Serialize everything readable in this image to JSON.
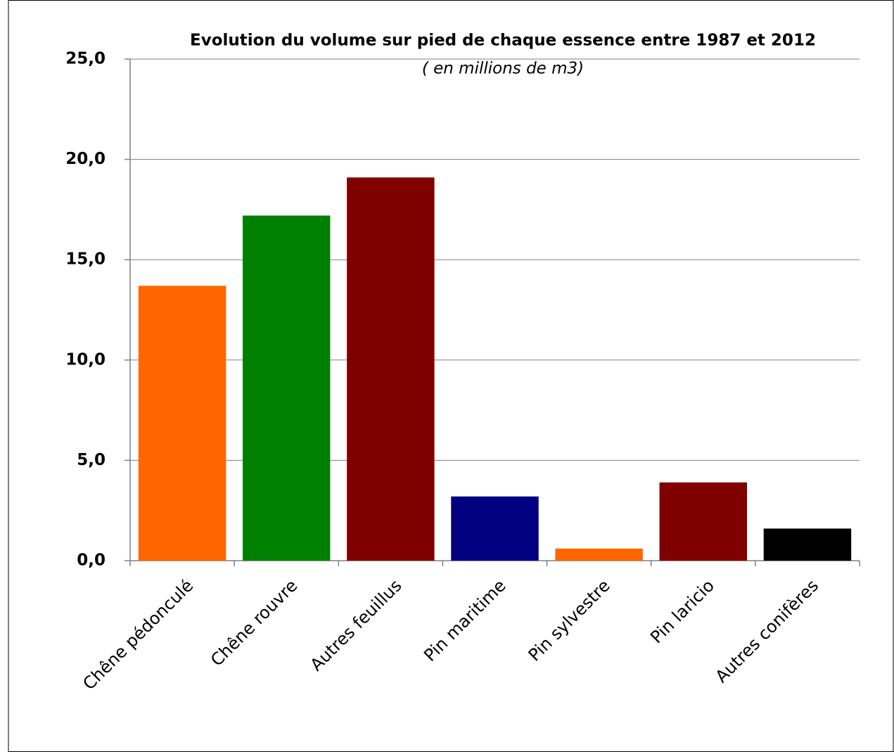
{
  "chart_data": {
    "type": "bar",
    "title": "Evolution du volume sur pied de chaque essence entre 1987 et 2012",
    "subtitle": "( en millions de m3)",
    "categories": [
      "Chêne pédonculé",
      "Chêne rouvre",
      "Autres feuillus",
      "Pin maritime",
      "Pin sylvestre",
      "Pin laricio",
      "Autres conifères"
    ],
    "values": [
      13.7,
      17.2,
      19.1,
      3.2,
      0.6,
      3.9,
      1.6
    ],
    "colors": [
      "#ff6600",
      "#008000",
      "#800000",
      "#000080",
      "#ff6600",
      "#800000",
      "#000000"
    ],
    "ylim": [
      0,
      25
    ],
    "yticks": [
      {
        "value": 0,
        "label": "0,0"
      },
      {
        "value": 5,
        "label": "5,0"
      },
      {
        "value": 10,
        "label": "10,0"
      },
      {
        "value": 15,
        "label": "15,0"
      },
      {
        "value": 20,
        "label": "20,0"
      },
      {
        "value": 25,
        "label": "25,0"
      }
    ],
    "grid": true
  }
}
